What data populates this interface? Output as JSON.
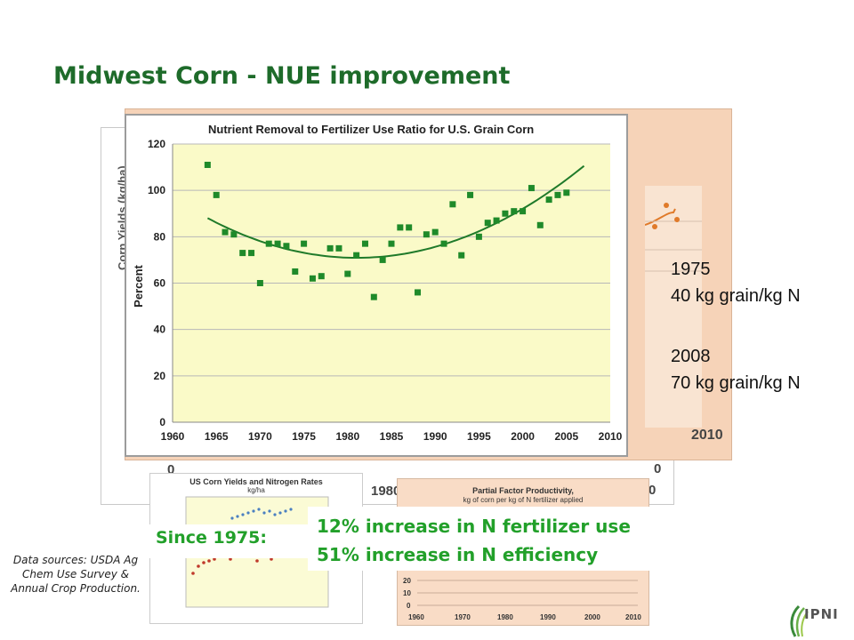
{
  "slide": {
    "title": "Midwest Corn - NUE improvement"
  },
  "background": {
    "yield_axis_label": "Corn Yields (kg/ha)",
    "peach_year_label": "2010",
    "zero_left": "0",
    "zero_right": "0",
    "x_fragment": "1980",
    "x_fragment_right": "0",
    "small_left_title": "US Corn Yields and Nitrogen Rates",
    "small_left_unit": "kg/ha",
    "small_right_title": "Partial Factor Productivity,",
    "small_right_subtitle": "kg of corn per kg of N fertilizer applied"
  },
  "notes": {
    "year1": "1975",
    "value1": "40 kg grain/kg N",
    "year2": "2008",
    "value2": "70 kg grain/kg N"
  },
  "callout": {
    "since": "Since 1975:",
    "line1": "12% increase in N fertilizer use",
    "line2": "51% increase in N efficiency"
  },
  "sources": "Data sources: USDA Ag Chem Use Survey & Annual Crop Production.",
  "logo": {
    "text": "IPNI"
  },
  "colors": {
    "title": "#1e6b2a",
    "callout": "#22a02a",
    "plot_bg": "#fafac8",
    "marker": "#1f8a2a",
    "trend": "#1f7a2a"
  },
  "chart_data": {
    "type": "scatter",
    "title": "Nutrient Removal to Fertilizer Use Ratio for U.S. Grain Corn",
    "xlabel": "",
    "ylabel": "Percent",
    "xlim": [
      1960,
      2010
    ],
    "ylim": [
      0,
      120
    ],
    "x_ticks": [
      1960,
      1965,
      1970,
      1975,
      1980,
      1985,
      1990,
      1995,
      2000,
      2005,
      2010
    ],
    "y_ticks": [
      0,
      20,
      40,
      60,
      80,
      100,
      120
    ],
    "grid": "horizontal",
    "series": [
      {
        "x": [
          1964,
          1965,
          1966,
          1967,
          1968,
          1969,
          1970,
          1971,
          1972,
          1973,
          1974,
          1975,
          1976,
          1977,
          1978,
          1979,
          1980,
          1981,
          1982,
          1983,
          1984,
          1985,
          1986,
          1987,
          1988,
          1989,
          1990,
          1991,
          1992,
          1993,
          1994,
          1995,
          1996,
          1997,
          1998,
          1999,
          2000,
          2001,
          2002,
          2003,
          2004,
          2005
        ],
        "y": [
          111,
          98,
          82,
          81,
          73,
          73,
          60,
          77,
          77,
          76,
          65,
          77,
          62,
          63,
          75,
          75,
          64,
          72,
          77,
          54,
          70,
          77,
          84,
          84,
          56,
          81,
          82,
          77,
          94,
          72,
          98,
          80,
          86,
          87,
          90,
          91,
          91,
          101,
          85,
          96,
          98,
          99
        ]
      }
    ],
    "trendline": "polynomial"
  }
}
